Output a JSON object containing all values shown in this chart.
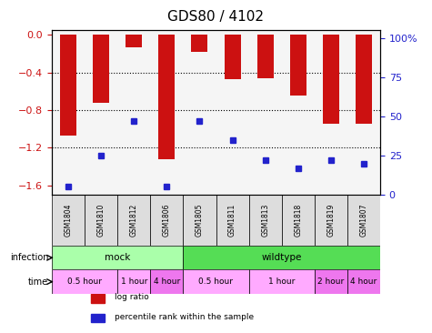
{
  "title": "GDS80 / 4102",
  "samples": [
    "GSM1804",
    "GSM1810",
    "GSM1812",
    "GSM1806",
    "GSM1805",
    "GSM1811",
    "GSM1813",
    "GSM1818",
    "GSM1819",
    "GSM1807"
  ],
  "log_ratios": [
    -1.07,
    -0.72,
    -0.13,
    -1.32,
    -0.18,
    -0.47,
    -0.46,
    -0.65,
    -0.95,
    -0.95
  ],
  "percentile_ranks": [
    5,
    25,
    47,
    5,
    47,
    35,
    22,
    17,
    22,
    20
  ],
  "ylim_left": [
    -1.7,
    0.05
  ],
  "ylim_right": [
    0,
    105
  ],
  "yticks_left": [
    0,
    -0.4,
    -0.8,
    -1.2,
    -1.6
  ],
  "yticks_right": [
    0,
    25,
    50,
    75,
    100
  ],
  "bar_color": "#cc1111",
  "dot_color": "#2222cc",
  "bg_color": "#f5f5f5",
  "infection_row": [
    {
      "label": "mock",
      "start": 0,
      "end": 4,
      "color": "#aaffaa"
    },
    {
      "label": "wildtype",
      "start": 4,
      "end": 10,
      "color": "#55dd55"
    }
  ],
  "time_row": [
    {
      "label": "0.5 hour",
      "start": 0,
      "end": 2,
      "color": "#ffaaff"
    },
    {
      "label": "1 hour",
      "start": 2,
      "end": 3,
      "color": "#ffaaff"
    },
    {
      "label": "4 hour",
      "start": 3,
      "end": 4,
      "color": "#ee77ee"
    },
    {
      "label": "0.5 hour",
      "start": 4,
      "end": 6,
      "color": "#ffaaff"
    },
    {
      "label": "1 hour",
      "start": 6,
      "end": 8,
      "color": "#ffaaff"
    },
    {
      "label": "2 hour",
      "start": 8,
      "end": 9,
      "color": "#ee77ee"
    },
    {
      "label": "4 hour",
      "start": 9,
      "end": 10,
      "color": "#ee77ee"
    }
  ],
  "legend_items": [
    {
      "label": "log ratio",
      "color": "#cc1111",
      "marker": "s"
    },
    {
      "label": "percentile rank within the sample",
      "color": "#2222cc",
      "marker": "s"
    }
  ]
}
